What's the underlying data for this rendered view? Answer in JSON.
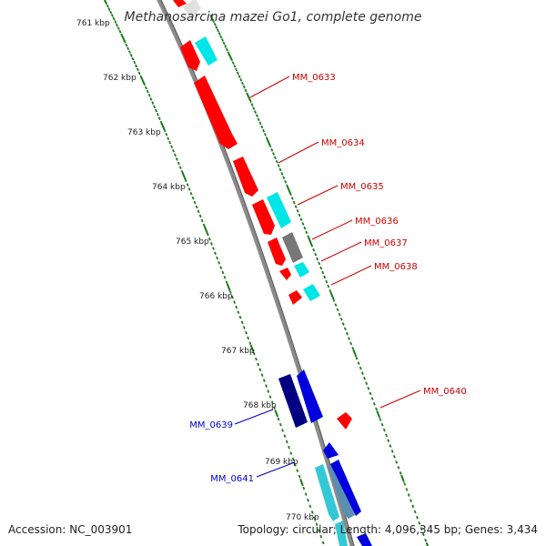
{
  "title": "Methanosarcina mazei Go1, complete genome",
  "footer": {
    "accession": "Accession: NC_003901",
    "summary": "Topology: circular; Length: 4,096,345 bp; Genes: 3,434"
  },
  "ticks": [
    "761 kbp",
    "762 kbp",
    "763 kbp",
    "764 kbp",
    "765 kbp",
    "766 kbp",
    "767 kbp",
    "768 kbp",
    "769 kbp",
    "770 kbp"
  ],
  "colors": {
    "forward_gene": "#ff0000",
    "forward_feature": "#00e5e5",
    "forward_gray": "#777777",
    "reverse_gene": "#0000dd",
    "reverse_dark": "#000080",
    "reverse_feature": "#33c8d6",
    "backbone": "#8a8a8a",
    "tick": "#1a7a1a",
    "forward_label": "#cc0000",
    "reverse_label": "#0000cc"
  },
  "gene_labels": {
    "forward": [
      "MM_0633",
      "MM_0634",
      "MM_0635",
      "MM_0636",
      "MM_0637",
      "MM_0638",
      "MM_0640"
    ],
    "reverse": [
      "MM_0639",
      "MM_0641"
    ]
  }
}
